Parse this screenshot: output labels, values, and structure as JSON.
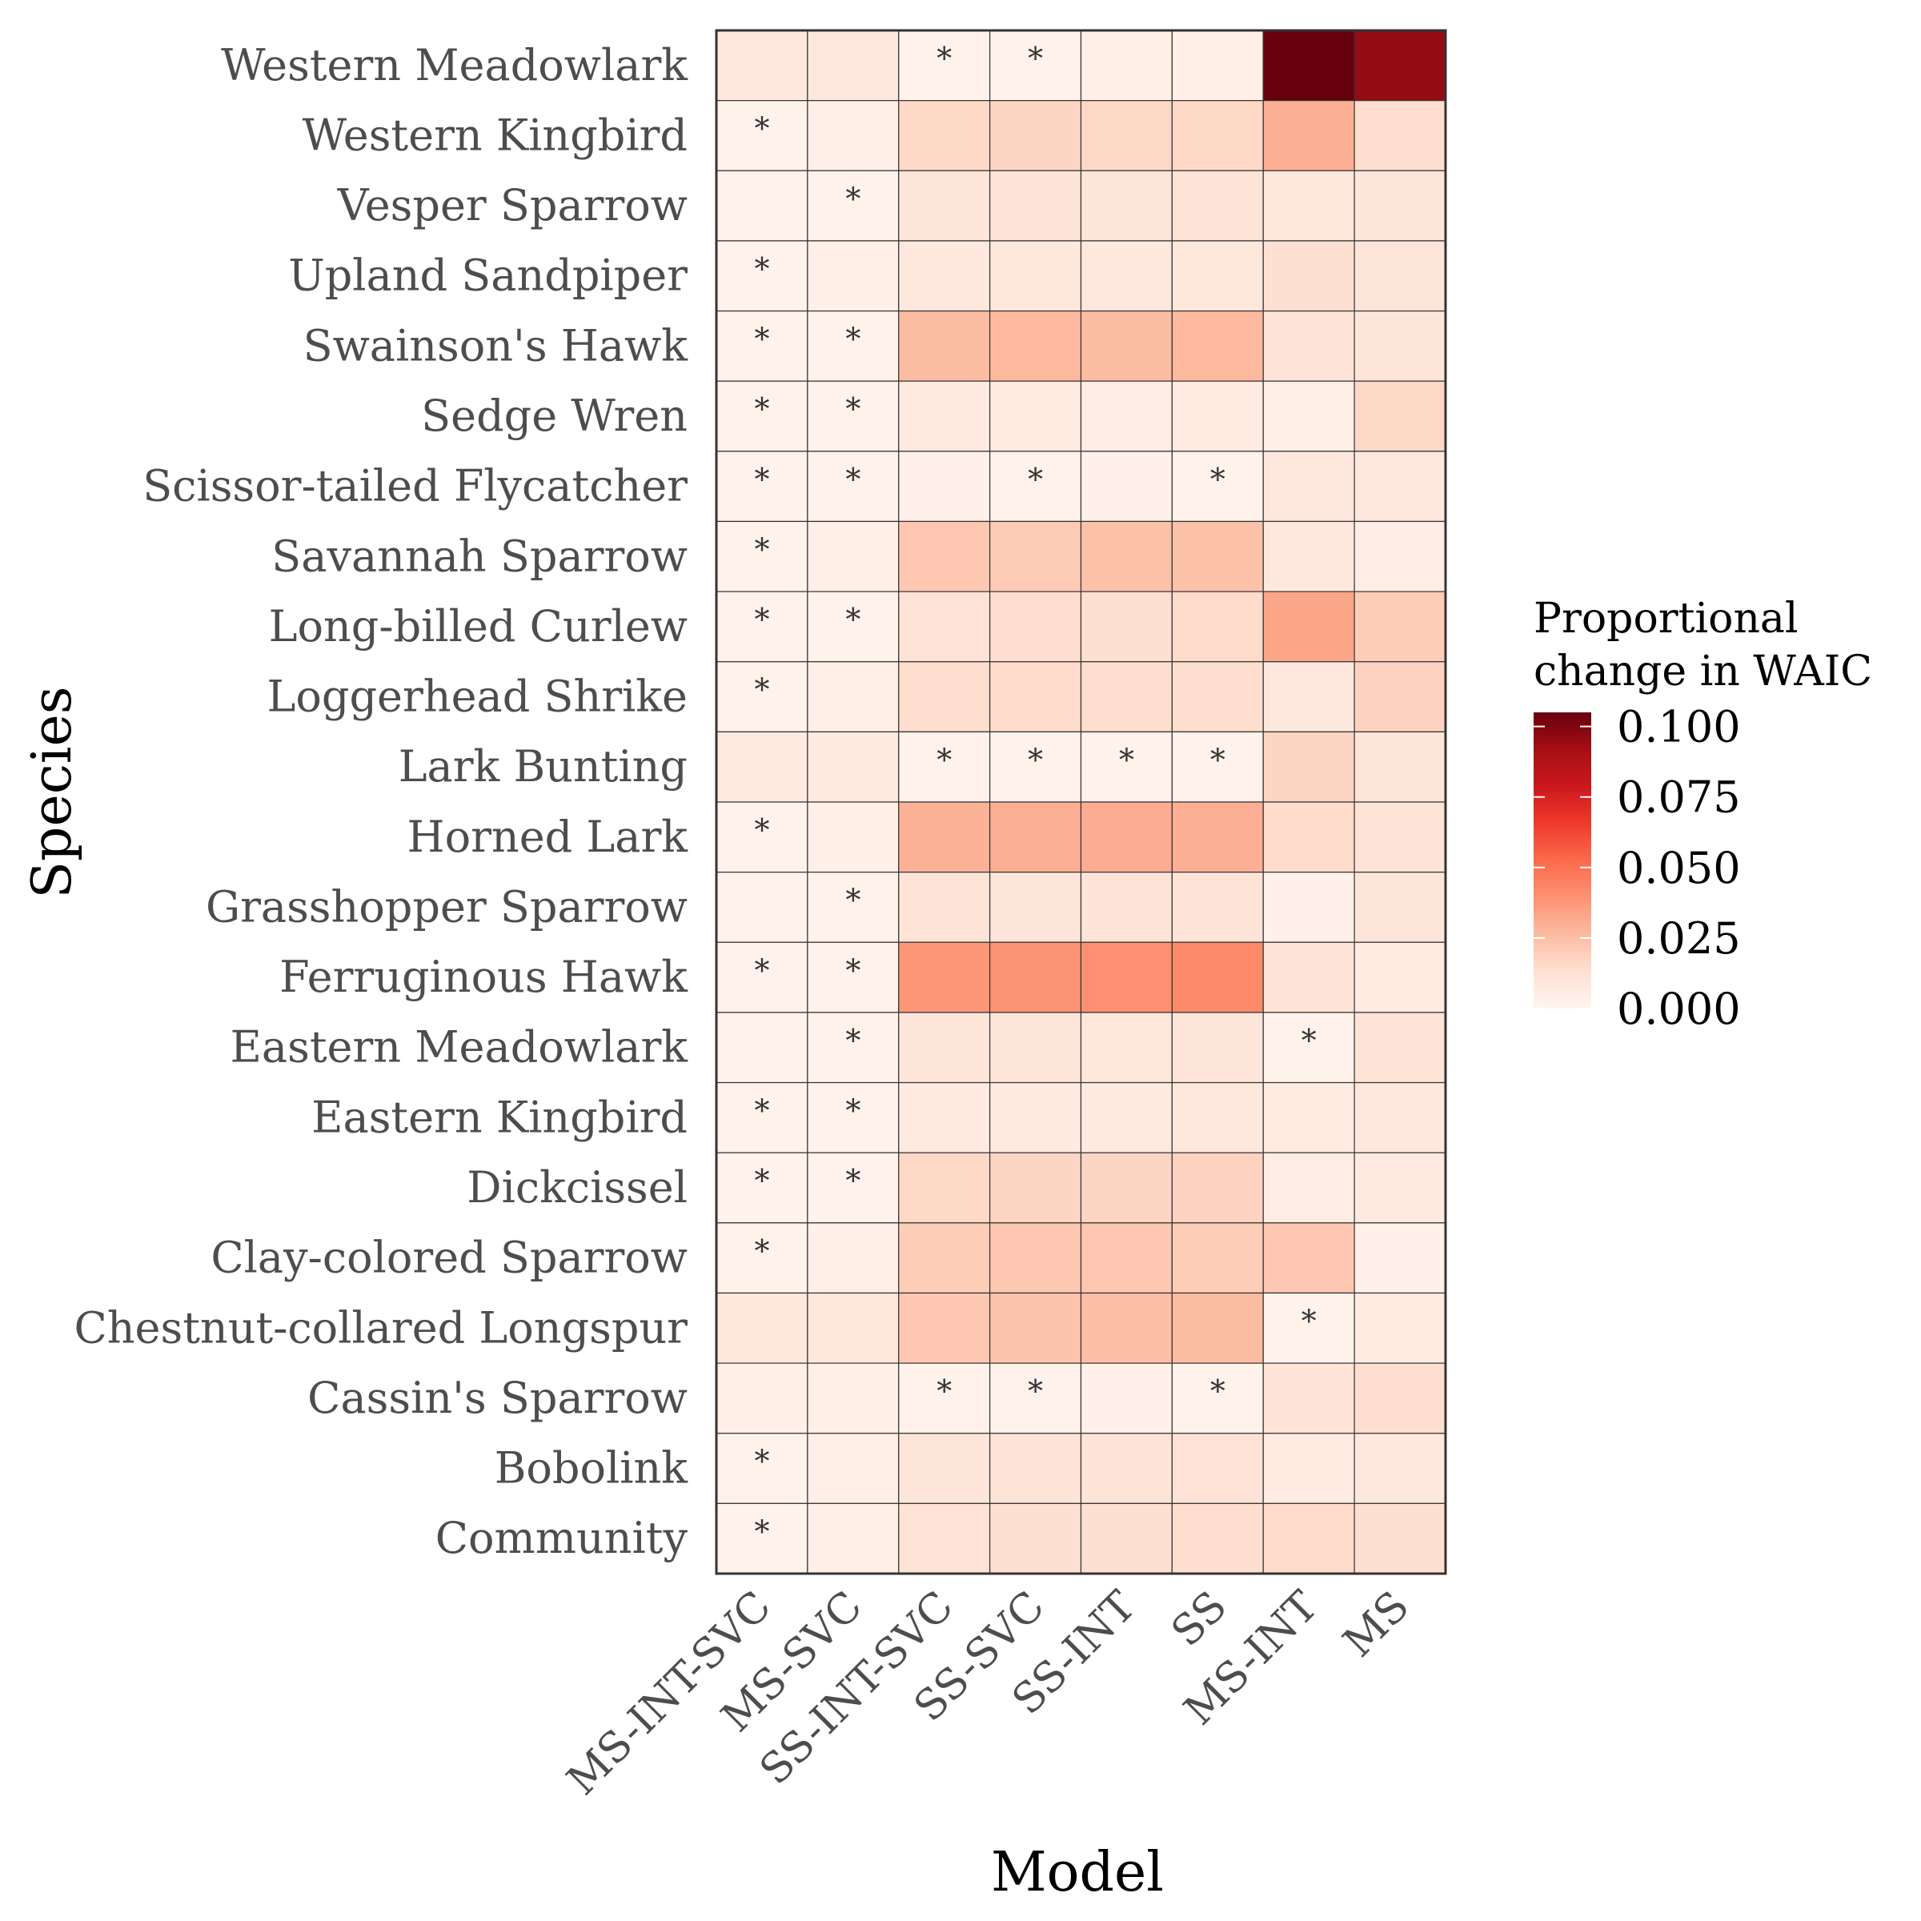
{
  "chart_data": {
    "type": "heatmap",
    "title": "",
    "xlabel": "Model",
    "ylabel": "Species",
    "x_categories": [
      "MS-INT-SVC",
      "MS-SVC",
      "SS-INT-SVC",
      "SS-SVC",
      "SS-INT",
      "SS",
      "MS-INT",
      "MS"
    ],
    "y_categories": [
      "Western Meadowlark",
      "Western Kingbird",
      "Vesper Sparrow",
      "Upland Sandpiper",
      "Swainson's Hawk",
      "Sedge Wren",
      "Scissor-tailed Flycatcher",
      "Savannah Sparrow",
      "Long-billed Curlew",
      "Loggerhead Shrike",
      "Lark Bunting",
      "Horned Lark",
      "Grasshopper Sparrow",
      "Ferruginous Hawk",
      "Eastern Meadowlark",
      "Eastern Kingbird",
      "Dickcissel",
      "Clay-colored Sparrow",
      "Chestnut-collared Longspur",
      "Cassin's Sparrow",
      "Bobolink",
      "Community"
    ],
    "values": [
      [
        0.008,
        0.008,
        0.002,
        0.002,
        0.004,
        0.004,
        0.105,
        0.095
      ],
      [
        0.002,
        0.004,
        0.016,
        0.017,
        0.016,
        0.016,
        0.03,
        0.014
      ],
      [
        0.002,
        0.002,
        0.01,
        0.011,
        0.01,
        0.011,
        0.009,
        0.01
      ],
      [
        0.002,
        0.004,
        0.008,
        0.009,
        0.008,
        0.009,
        0.013,
        0.01
      ],
      [
        0.002,
        0.002,
        0.026,
        0.027,
        0.026,
        0.027,
        0.011,
        0.01
      ],
      [
        0.002,
        0.002,
        0.007,
        0.006,
        0.005,
        0.006,
        0.004,
        0.016
      ],
      [
        0.002,
        0.002,
        0.003,
        0.002,
        0.003,
        0.002,
        0.008,
        0.008
      ],
      [
        0.002,
        0.004,
        0.022,
        0.021,
        0.024,
        0.024,
        0.008,
        0.005
      ],
      [
        0.002,
        0.002,
        0.012,
        0.014,
        0.013,
        0.015,
        0.033,
        0.02
      ],
      [
        0.002,
        0.004,
        0.014,
        0.015,
        0.014,
        0.014,
        0.008,
        0.018
      ],
      [
        0.007,
        0.007,
        0.002,
        0.002,
        0.002,
        0.002,
        0.017,
        0.01
      ],
      [
        0.002,
        0.004,
        0.029,
        0.03,
        0.031,
        0.03,
        0.015,
        0.011
      ],
      [
        0.002,
        0.002,
        0.011,
        0.01,
        0.011,
        0.011,
        0.003,
        0.01
      ],
      [
        0.002,
        0.002,
        0.038,
        0.039,
        0.04,
        0.042,
        0.011,
        0.006
      ],
      [
        0.002,
        0.002,
        0.01,
        0.01,
        0.009,
        0.01,
        0.002,
        0.011
      ],
      [
        0.002,
        0.002,
        0.007,
        0.007,
        0.007,
        0.008,
        0.006,
        0.008
      ],
      [
        0.002,
        0.002,
        0.016,
        0.017,
        0.017,
        0.018,
        0.005,
        0.007
      ],
      [
        0.002,
        0.004,
        0.02,
        0.022,
        0.022,
        0.02,
        0.022,
        0.003
      ],
      [
        0.009,
        0.009,
        0.022,
        0.023,
        0.025,
        0.026,
        0.002,
        0.006
      ],
      [
        0.004,
        0.004,
        0.002,
        0.002,
        0.003,
        0.002,
        0.011,
        0.014
      ],
      [
        0.002,
        0.004,
        0.01,
        0.011,
        0.011,
        0.012,
        0.006,
        0.008
      ],
      [
        0.002,
        0.004,
        0.012,
        0.013,
        0.013,
        0.014,
        0.015,
        0.013
      ]
    ],
    "best_model_marker": "*",
    "best_model_marks": [
      [
        false,
        false,
        true,
        true,
        false,
        false,
        false,
        false
      ],
      [
        true,
        false,
        false,
        false,
        false,
        false,
        false,
        false
      ],
      [
        false,
        true,
        false,
        false,
        false,
        false,
        false,
        false
      ],
      [
        true,
        false,
        false,
        false,
        false,
        false,
        false,
        false
      ],
      [
        true,
        true,
        false,
        false,
        false,
        false,
        false,
        false
      ],
      [
        true,
        true,
        false,
        false,
        false,
        false,
        false,
        false
      ],
      [
        true,
        true,
        false,
        true,
        false,
        true,
        false,
        false
      ],
      [
        true,
        false,
        false,
        false,
        false,
        false,
        false,
        false
      ],
      [
        true,
        true,
        false,
        false,
        false,
        false,
        false,
        false
      ],
      [
        true,
        false,
        false,
        false,
        false,
        false,
        false,
        false
      ],
      [
        false,
        false,
        true,
        true,
        true,
        true,
        false,
        false
      ],
      [
        true,
        false,
        false,
        false,
        false,
        false,
        false,
        false
      ],
      [
        false,
        true,
        false,
        false,
        false,
        false,
        false,
        false
      ],
      [
        true,
        true,
        false,
        false,
        false,
        false,
        false,
        false
      ],
      [
        false,
        true,
        false,
        false,
        false,
        false,
        true,
        false
      ],
      [
        true,
        true,
        false,
        false,
        false,
        false,
        false,
        false
      ],
      [
        true,
        true,
        false,
        false,
        false,
        false,
        false,
        false
      ],
      [
        true,
        false,
        false,
        false,
        false,
        false,
        false,
        false
      ],
      [
        false,
        false,
        false,
        false,
        false,
        false,
        true,
        false
      ],
      [
        false,
        false,
        true,
        true,
        false,
        true,
        false,
        false
      ],
      [
        true,
        false,
        false,
        false,
        false,
        false,
        false,
        false
      ],
      [
        true,
        false,
        false,
        false,
        false,
        false,
        false,
        false
      ]
    ],
    "legend": {
      "title_line1": "Proportional",
      "title_line2": "change in WAIC",
      "ticks": [
        "0.100",
        "0.075",
        "0.050",
        "0.025",
        "0.000"
      ],
      "tick_values": [
        0.1,
        0.075,
        0.05,
        0.025,
        0.0
      ],
      "range": [
        0,
        0.105
      ],
      "placement": "right"
    },
    "colorscale": [
      "#fff5f0",
      "#fee0d2",
      "#fcbba1",
      "#fc9272",
      "#fb6a4a",
      "#ef3b2c",
      "#cb181d",
      "#a50f15",
      "#67000d"
    ]
  }
}
